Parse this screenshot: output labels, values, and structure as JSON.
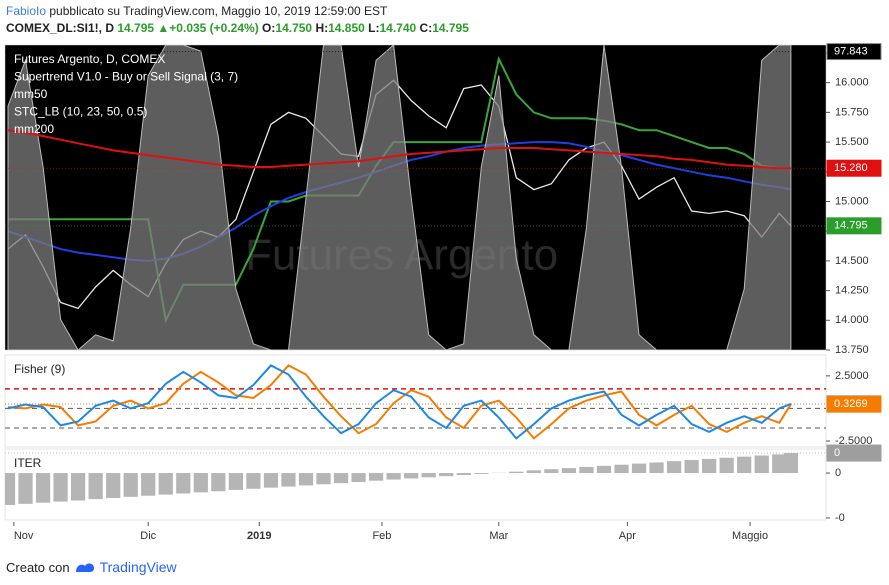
{
  "header": {
    "author": "FabioIo",
    "published": "pubblicato su TradingView.com, Maggio 10, 2019 12:59:00 EST"
  },
  "quote": {
    "symbol": "COMEX_DL:SI1!, D",
    "last": "14.795",
    "arrow": "▲",
    "change": "+0.035 (+0.24%)",
    "open_label": "O:",
    "open": "14.750",
    "high_label": "H:",
    "high": "14.850",
    "low_label": "L:",
    "low": "14.740",
    "close_label": "C:",
    "close": "14.795"
  },
  "chart_data": [
    {
      "type": "line",
      "title": "Futures Argento, D, COMEX",
      "watermark": "Futures Argento",
      "background": "#000000",
      "x": [
        0,
        3,
        6,
        9,
        12,
        15,
        18,
        21,
        24,
        27,
        30,
        33,
        36,
        39,
        42,
        45,
        48,
        51,
        54,
        57,
        60,
        63,
        66,
        69,
        72,
        75,
        78,
        81,
        84,
        87,
        90,
        93,
        96,
        99,
        102,
        105,
        108,
        111,
        114,
        117,
        120,
        123,
        126,
        129,
        132,
        134
      ],
      "xlim": [
        0,
        140
      ],
      "ylim": [
        13.75,
        16.317
      ],
      "yticks": [
        {
          "value": 13.75,
          "label": "13.750"
        },
        {
          "value": 14,
          "label": "14.000"
        },
        {
          "value": 14.25,
          "label": "14.250"
        },
        {
          "value": 14.5,
          "label": "14.500"
        },
        {
          "value": 14.75,
          "label": "14.750"
        },
        {
          "value": 15,
          "label": "15.000"
        },
        {
          "value": 15.25,
          "label": "15.250"
        },
        {
          "value": 15.5,
          "label": "15.500"
        },
        {
          "value": 15.75,
          "label": "15.750"
        },
        {
          "value": 16,
          "label": "16.000"
        },
        {
          "value": 16.25,
          "label": "16.250"
        }
      ],
      "y2lim": [
        0,
        100
      ],
      "series": [
        {
          "color": "#e8e8e8",
          "values": [
            14.6,
            14.72,
            14.45,
            14.15,
            14.1,
            14.28,
            14.42,
            14.3,
            14.2,
            14.48,
            14.68,
            14.75,
            14.7,
            14.85,
            15.25,
            15.65,
            15.75,
            15.7,
            15.55,
            15.4,
            15.38,
            15.9,
            16.02,
            15.85,
            15.72,
            15.62,
            15.95,
            15.98,
            15.8,
            15.2,
            15.1,
            15.15,
            15.35,
            15.45,
            15.5,
            15.3,
            15.02,
            15.12,
            15.2,
            14.92,
            14.9,
            14.92,
            14.88,
            14.7,
            14.9,
            14.795
          ]
        },
        {
          "name": "Supertrend V1.0 - Buy or Sell Signal (3, 7)",
          "color": "#3aa63a",
          "values": [
            14.85,
            14.85,
            14.85,
            14.85,
            14.85,
            14.85,
            14.85,
            14.85,
            14.85,
            14.0,
            14.3,
            14.3,
            14.3,
            14.3,
            14.6,
            15.0,
            15.0,
            15.05,
            15.05,
            15.05,
            15.05,
            15.3,
            15.5,
            15.5,
            15.5,
            15.5,
            15.5,
            15.5,
            16.2,
            15.9,
            15.75,
            15.7,
            15.7,
            15.7,
            15.68,
            15.65,
            15.6,
            15.6,
            15.55,
            15.5,
            15.45,
            15.45,
            15.4,
            15.3,
            15.28,
            15.28
          ]
        },
        {
          "name": "mm50",
          "color": "#1f3fe0",
          "values": [
            14.75,
            14.7,
            14.65,
            14.6,
            14.57,
            14.55,
            14.53,
            14.51,
            14.5,
            14.52,
            14.56,
            14.62,
            14.7,
            14.78,
            14.88,
            14.96,
            15.03,
            15.08,
            15.12,
            15.16,
            15.2,
            15.25,
            15.3,
            15.35,
            15.38,
            15.42,
            15.45,
            15.47,
            15.48,
            15.49,
            15.5,
            15.5,
            15.49,
            15.46,
            15.42,
            15.39,
            15.35,
            15.31,
            15.28,
            15.25,
            15.22,
            15.2,
            15.17,
            15.14,
            15.12,
            15.1
          ]
        },
        {
          "name": "STC_LB (10, 23, 50, 0.5)",
          "color": "#7c7c7c",
          "style": "area",
          "axis": "y2",
          "values": [
            80,
            95,
            60,
            10,
            0,
            5,
            3,
            40,
            90,
            100,
            100,
            98,
            70,
            20,
            2,
            0,
            0,
            50,
            100,
            100,
            60,
            95,
            100,
            50,
            5,
            0,
            2,
            60,
            90,
            30,
            5,
            0,
            0,
            40,
            100,
            60,
            5,
            0,
            0,
            0,
            0,
            0,
            20,
            95,
            100,
            100
          ]
        },
        {
          "name": "mm200",
          "color": "#e01010",
          "values": [
            15.6,
            15.58,
            15.55,
            15.52,
            15.49,
            15.46,
            15.43,
            15.41,
            15.39,
            15.37,
            15.35,
            15.33,
            15.31,
            15.3,
            15.29,
            15.29,
            15.3,
            15.31,
            15.32,
            15.33,
            15.34,
            15.36,
            15.38,
            15.4,
            15.41,
            15.42,
            15.43,
            15.44,
            15.45,
            15.45,
            15.45,
            15.44,
            15.43,
            15.42,
            15.41,
            15.4,
            15.39,
            15.38,
            15.36,
            15.35,
            15.33,
            15.31,
            15.3,
            15.29,
            15.28,
            15.28
          ]
        }
      ],
      "markers": [
        {
          "value": 97.843,
          "axis": "y2",
          "color": "#000000"
        },
        {
          "value": 15.28,
          "label": "15.280",
          "color": "#e01010"
        },
        {
          "value": 14.795,
          "color": "#2a9d2a"
        }
      ]
    },
    {
      "type": "line",
      "title": "Fisher (9)",
      "background": "#ffffff",
      "x": [
        0,
        3,
        6,
        9,
        12,
        15,
        18,
        21,
        24,
        27,
        30,
        33,
        36,
        39,
        42,
        45,
        48,
        51,
        54,
        57,
        60,
        63,
        66,
        69,
        72,
        75,
        78,
        81,
        84,
        87,
        90,
        93,
        96,
        99,
        102,
        105,
        108,
        111,
        114,
        117,
        120,
        123,
        126,
        129,
        132,
        134
      ],
      "xlim": [
        0,
        140
      ],
      "ylim": [
        -2.96,
        4.1
      ],
      "yticks": [
        {
          "value": 2.5,
          "label": "2.5000"
        },
        {
          "value": -2.5,
          "label": "-2.5000"
        }
      ],
      "levels": [
        1.5,
        0,
        -1.5
      ],
      "level_colors": [
        "#e01010",
        "#555555",
        "#555555"
      ],
      "series": [
        {
          "color": "#f57c00",
          "values": [
            0.1,
            0.0,
            0.3,
            0.1,
            -1.3,
            -1.0,
            0.2,
            0.6,
            0.0,
            0.4,
            1.9,
            2.8,
            2.0,
            1.0,
            0.8,
            1.8,
            3.3,
            2.6,
            0.9,
            -0.6,
            -1.9,
            -1.2,
            0.4,
            1.4,
            0.9,
            -0.7,
            -1.5,
            0.2,
            0.6,
            -0.7,
            -2.3,
            -1.2,
            0.0,
            0.6,
            1.0,
            1.3,
            -0.5,
            -1.3,
            -0.5,
            0.2,
            -1.2,
            -1.8,
            -1.1,
            -0.6,
            -1.1,
            0.3269
          ]
        },
        {
          "color": "#1e88e5",
          "values": [
            0.0,
            0.3,
            0.1,
            -1.3,
            -1.0,
            0.2,
            0.6,
            0.0,
            0.4,
            1.9,
            2.8,
            2.0,
            1.0,
            0.8,
            1.8,
            3.3,
            2.6,
            0.9,
            -0.6,
            -1.9,
            -1.2,
            0.4,
            1.4,
            0.9,
            -0.7,
            -1.5,
            0.2,
            0.6,
            -0.7,
            -2.3,
            -1.2,
            0.0,
            0.6,
            1.0,
            1.3,
            -0.5,
            -1.3,
            -0.5,
            0.2,
            -1.2,
            -1.8,
            -1.1,
            -0.6,
            -1.1,
            0.0,
            0.3454
          ]
        }
      ],
      "markers": [
        {
          "value": 0.3454,
          "color": "#1e88e5"
        },
        {
          "value": 0.3269,
          "color": "#f57c00"
        }
      ]
    },
    {
      "type": "bar",
      "title": "ITER",
      "background": "#ffffff",
      "x": [
        0,
        3,
        6,
        9,
        12,
        15,
        18,
        21,
        24,
        27,
        30,
        33,
        36,
        39,
        42,
        45,
        48,
        51,
        54,
        57,
        60,
        63,
        66,
        69,
        72,
        75,
        78,
        81,
        84,
        87,
        90,
        93,
        96,
        99,
        102,
        105,
        108,
        111,
        114,
        117,
        120,
        123,
        126,
        129,
        132,
        134
      ],
      "xlim": [
        0,
        140
      ],
      "ylim": [
        -0.000209,
        0.000107
      ],
      "yticks": [
        {
          "value": 0,
          "label": "0"
        },
        {
          "value": -0.0002,
          "label": "-0"
        }
      ],
      "xticks": [
        {
          "value": 1,
          "label": "Nov"
        },
        {
          "value": 24,
          "label": "Dic"
        },
        {
          "value": 43,
          "label": "2019"
        },
        {
          "value": 64,
          "label": "Feb"
        },
        {
          "value": 84,
          "label": "Mar"
        },
        {
          "value": 106,
          "label": "Apr"
        },
        {
          "value": 127,
          "label": "Maggio"
        }
      ],
      "series": [
        {
          "color": "#b5b5b5",
          "values": [
            -0.000142,
            -0.000137,
            -0.000132,
            -0.000127,
            -0.000122,
            -0.000116,
            -0.000111,
            -0.000106,
            -0.000101,
            -9.6e-05,
            -9.1e-05,
            -8.6e-05,
            -8.1e-05,
            -7.5e-05,
            -7e-05,
            -6.5e-05,
            -6e-05,
            -5.5e-05,
            -5e-05,
            -4.5e-05,
            -4e-05,
            -3.4e-05,
            -2.9e-05,
            -2.4e-05,
            -1.9e-05,
            -1.4e-05,
            -9e-06,
            -4e-06,
            1e-06,
            6e-06,
            1.2e-05,
            1.7e-05,
            2.2e-05,
            2.7e-05,
            3.2e-05,
            3.7e-05,
            4.2e-05,
            4.7e-05,
            5.3e-05,
            5.8e-05,
            6.3e-05,
            6.8e-05,
            7.3e-05,
            7.8e-05,
            8.3e-05,
            8.9e-05
          ]
        }
      ],
      "markers": [
        {
          "value": 8.9e-05,
          "label": "0",
          "color": "#9e9e9e"
        }
      ]
    }
  ],
  "footer": {
    "prefix": "Creato con",
    "brand": "TradingView"
  }
}
